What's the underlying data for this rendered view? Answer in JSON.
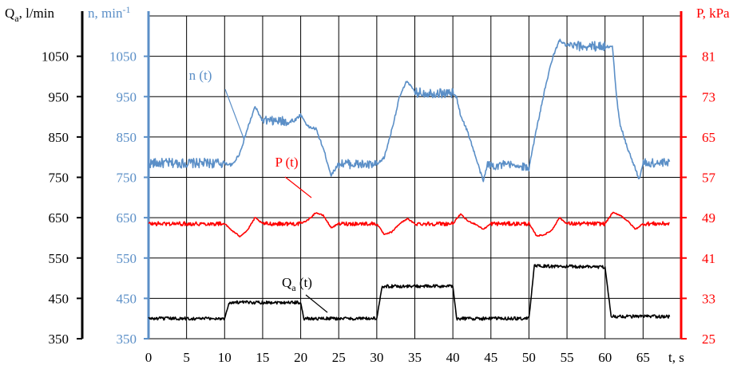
{
  "chart_data": {
    "type": "line",
    "x_axis": {
      "label": "t, s",
      "ticks": [
        0,
        5,
        10,
        15,
        20,
        25,
        30,
        35,
        40,
        45,
        50,
        55,
        60,
        65
      ],
      "range": [
        0,
        70
      ]
    },
    "y_axes": {
      "qa": {
        "label_main": "Q",
        "label_sub": "a",
        "label_rest": ", l/min",
        "ticks": [
          350,
          450,
          550,
          650,
          750,
          850,
          950,
          1050
        ],
        "range": [
          350,
          1150
        ],
        "color": "#000000"
      },
      "n": {
        "label": "n, min",
        "label_sup": "-1",
        "ticks": [
          350,
          450,
          550,
          650,
          750,
          850,
          950,
          1050
        ],
        "range": [
          350,
          1150
        ],
        "color": "#5B8FC7"
      },
      "p": {
        "label": "P, kPa",
        "ticks": [
          25,
          33,
          41,
          49,
          57,
          65,
          73,
          81
        ],
        "range": [
          25,
          89
        ],
        "color": "#FF0000"
      }
    },
    "series": [
      {
        "key": "n",
        "label": "n (t)",
        "color": "#5B8FC7",
        "axis": "n",
        "points": [
          [
            0,
            785
          ],
          [
            10,
            785
          ],
          [
            11,
            780
          ],
          [
            12,
            810
          ],
          [
            13,
            870
          ],
          [
            14,
            925
          ],
          [
            15,
            890
          ],
          [
            19,
            888
          ],
          [
            20,
            905
          ],
          [
            21,
            875
          ],
          [
            22,
            870
          ],
          [
            23,
            820
          ],
          [
            24,
            755
          ],
          [
            25,
            785
          ],
          [
            29.5,
            780
          ],
          [
            30,
            780
          ],
          [
            31,
            800
          ],
          [
            32,
            870
          ],
          [
            33,
            950
          ],
          [
            34,
            990
          ],
          [
            35,
            960
          ],
          [
            40,
            958
          ],
          [
            40.5,
            948
          ],
          [
            41,
            905
          ],
          [
            42,
            860
          ],
          [
            43,
            800
          ],
          [
            44,
            740
          ],
          [
            44.5,
            780
          ],
          [
            48,
            780
          ],
          [
            49,
            775
          ],
          [
            50,
            775
          ],
          [
            51,
            870
          ],
          [
            52,
            960
          ],
          [
            53,
            1040
          ],
          [
            54,
            1090
          ],
          [
            55,
            1075
          ],
          [
            60,
            1075
          ],
          [
            61,
            1072
          ],
          [
            61.5,
            950
          ],
          [
            62,
            880
          ],
          [
            63,
            820
          ],
          [
            64,
            770
          ],
          [
            64.5,
            745
          ],
          [
            65,
            785
          ],
          [
            68.5,
            785
          ]
        ],
        "noise": 12
      },
      {
        "key": "p",
        "label": "P (t)",
        "color": "#FF0000",
        "axis": "p",
        "points": [
          [
            0,
            47.8
          ],
          [
            10,
            47.8
          ],
          [
            11,
            46.4
          ],
          [
            12,
            45.3
          ],
          [
            13,
            46.5
          ],
          [
            14,
            49.0
          ],
          [
            15,
            47.8
          ],
          [
            20,
            47.8
          ],
          [
            21,
            48.6
          ],
          [
            22,
            50.0
          ],
          [
            23,
            49.4
          ],
          [
            24,
            47.0
          ],
          [
            25,
            47.8
          ],
          [
            30,
            47.8
          ],
          [
            31,
            45.6
          ],
          [
            32,
            46.2
          ],
          [
            33,
            47.8
          ],
          [
            34,
            48.8
          ],
          [
            35,
            47.8
          ],
          [
            40,
            47.8
          ],
          [
            41,
            49.7
          ],
          [
            42,
            48.3
          ],
          [
            43,
            47.7
          ],
          [
            44,
            46.7
          ],
          [
            45,
            47.8
          ],
          [
            50,
            47.8
          ],
          [
            51,
            45.4
          ],
          [
            52,
            45.6
          ],
          [
            53,
            46.5
          ],
          [
            54,
            49.0
          ],
          [
            55,
            47.8
          ],
          [
            60,
            47.8
          ],
          [
            61,
            50.0
          ],
          [
            62,
            49.5
          ],
          [
            63,
            48.3
          ],
          [
            64,
            46.7
          ],
          [
            65,
            47.8
          ],
          [
            68.5,
            47.8
          ]
        ],
        "noise": 0.4
      },
      {
        "key": "qa",
        "label_main": "Q",
        "label_sub": "a",
        "label_rest": " (t)",
        "color": "#000000",
        "axis": "qa",
        "points": [
          [
            0,
            400
          ],
          [
            10,
            400
          ],
          [
            10.6,
            440
          ],
          [
            20,
            440
          ],
          [
            20.4,
            400
          ],
          [
            30,
            400
          ],
          [
            30.7,
            480
          ],
          [
            40,
            480
          ],
          [
            40.5,
            400
          ],
          [
            50,
            400
          ],
          [
            50.7,
            530
          ],
          [
            60,
            528
          ],
          [
            60.8,
            405
          ],
          [
            68.5,
            405
          ]
        ],
        "noise": 4
      }
    ],
    "grid": true
  }
}
